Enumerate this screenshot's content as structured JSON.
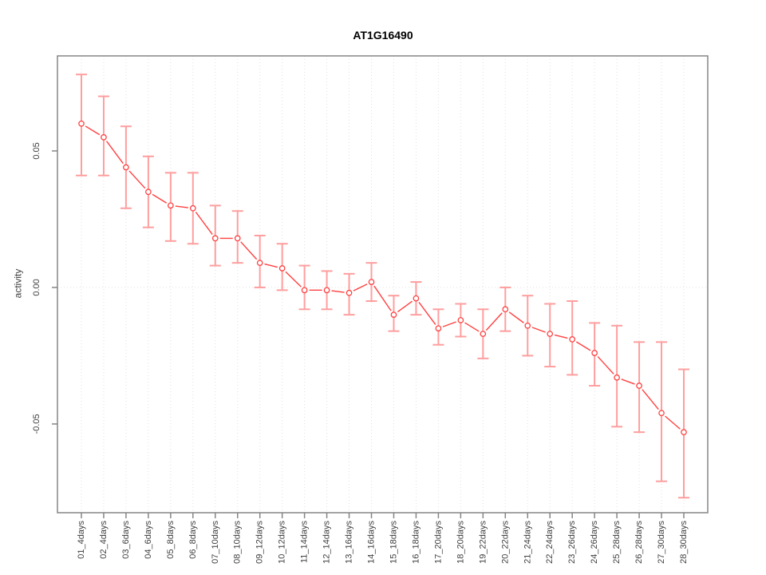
{
  "chart_data": {
    "type": "line",
    "title": "AT1G16490",
    "ylabel": "activity",
    "xlabel": "",
    "legend": "none",
    "grid": {
      "vertical": "dotted line at every category",
      "horizontal": "dotted line at y=0 only"
    },
    "ylim": [
      -0.0825,
      0.0848
    ],
    "yticks": [
      {
        "value": 0.05,
        "label": "0.05"
      },
      {
        "value": 0.0,
        "label": "0.00"
      },
      {
        "value": -0.05,
        "label": "-0.05"
      }
    ],
    "categories": [
      "01_4days",
      "02_4days",
      "03_6days",
      "04_6days",
      "05_8days",
      "06_8days",
      "07_10days",
      "08_10days",
      "09_12days",
      "10_12days",
      "11_14days",
      "12_14days",
      "13_16days",
      "14_16days",
      "15_18days",
      "16_18days",
      "17_20days",
      "18_20days",
      "19_22days",
      "20_22days",
      "21_24days",
      "22_24days",
      "23_26days",
      "24_26days",
      "25_28days",
      "26_28days",
      "27_30days",
      "28_30days"
    ],
    "series": [
      {
        "name": "activity",
        "values": [
          0.06,
          0.055,
          0.044,
          0.035,
          0.03,
          0.029,
          0.018,
          0.018,
          0.009,
          0.007,
          -0.001,
          -0.001,
          -0.002,
          0.002,
          -0.01,
          -0.004,
          -0.015,
          -0.012,
          -0.017,
          -0.008,
          -0.014,
          -0.017,
          -0.019,
          -0.024,
          -0.033,
          -0.036,
          -0.046,
          -0.053
        ],
        "error_upper": [
          0.078,
          0.07,
          0.059,
          0.048,
          0.042,
          0.042,
          0.03,
          0.028,
          0.019,
          0.016,
          0.008,
          0.006,
          0.005,
          0.009,
          -0.003,
          0.002,
          -0.008,
          -0.006,
          -0.008,
          0.0,
          -0.003,
          -0.006,
          -0.005,
          -0.013,
          -0.014,
          -0.02,
          -0.02,
          -0.03
        ],
        "error_lower": [
          0.041,
          0.041,
          0.029,
          0.022,
          0.017,
          0.016,
          0.008,
          0.009,
          0.0,
          -0.001,
          -0.008,
          -0.008,
          -0.01,
          -0.005,
          -0.016,
          -0.01,
          -0.021,
          -0.018,
          -0.026,
          -0.016,
          -0.025,
          -0.029,
          -0.032,
          -0.036,
          -0.051,
          -0.053,
          -0.071,
          -0.077
        ]
      }
    ],
    "point_style": "open-circle",
    "colors": {
      "series_line": "#ff4040",
      "error_bar": "#ff9e9e",
      "gridline": "#e0e0e0",
      "plot_border": "#858585",
      "tick_text": "#404040"
    }
  }
}
